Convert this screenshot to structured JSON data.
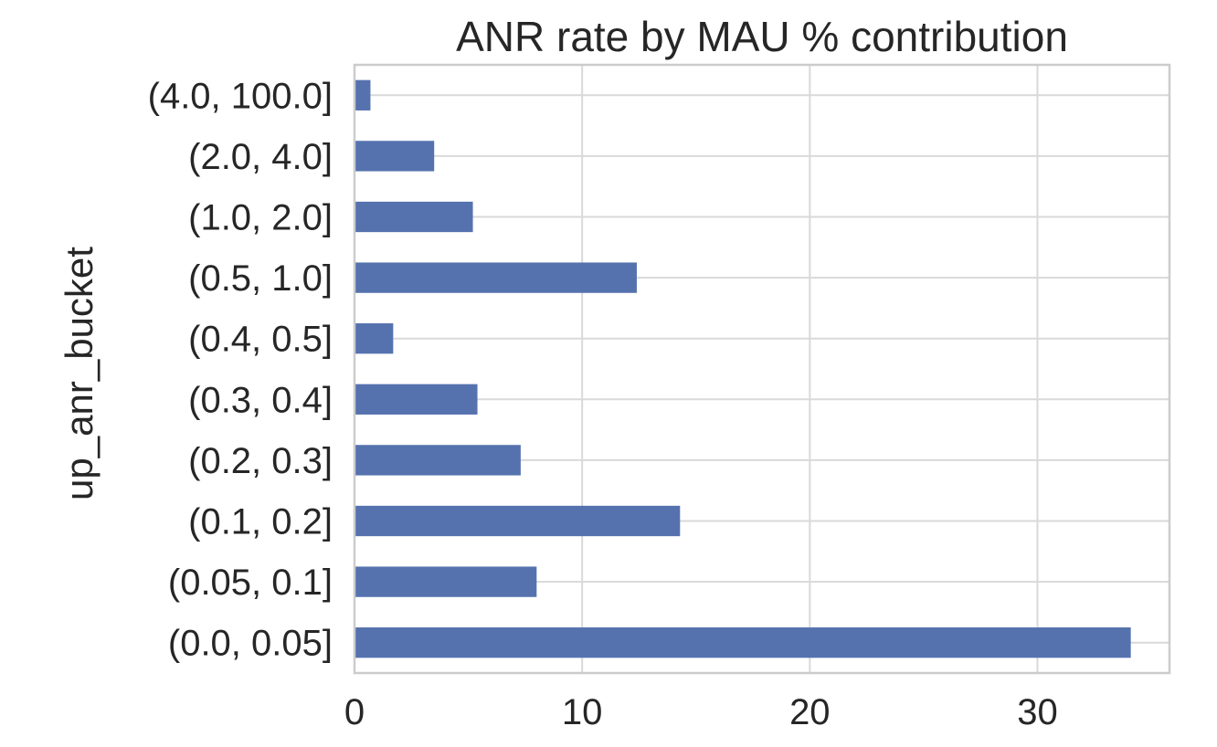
{
  "chart_data": {
    "type": "bar",
    "orientation": "horizontal",
    "title": "ANR rate by MAU % contribution",
    "xlabel": "",
    "ylabel": "up_anr_bucket",
    "categories": [
      "(0.0, 0.05]",
      "(0.05, 0.1]",
      "(0.1, 0.2]",
      "(0.2, 0.3]",
      "(0.3, 0.4]",
      "(0.4, 0.5]",
      "(0.5, 1.0]",
      "(1.0, 2.0]",
      "(2.0, 4.0]",
      "(4.0, 100.0]"
    ],
    "values": [
      34.1,
      8.0,
      14.3,
      7.3,
      5.4,
      1.7,
      12.4,
      5.2,
      3.5,
      0.7
    ],
    "xlim": [
      0,
      35.8
    ],
    "xticks": [
      0,
      10,
      20,
      30
    ],
    "grid": true,
    "legend": false,
    "bar_color": "#5572ae",
    "grid_color": "#d9d9d9",
    "frame_color": "#cccccc",
    "text_color": "#262626",
    "background": "#ffffff"
  }
}
